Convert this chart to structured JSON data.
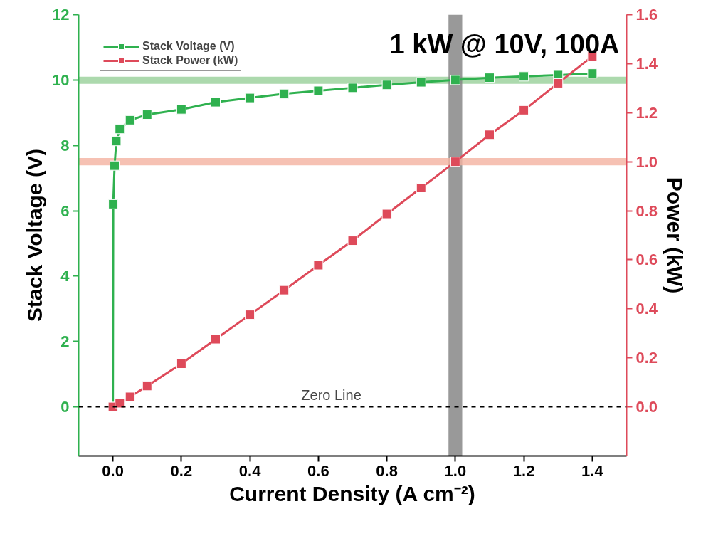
{
  "chart_data": {
    "type": "line",
    "xlabel": "Current Density (A cm⁻²)",
    "ylabel": "Stack Voltage (V)",
    "y2label": "Power (kW)",
    "annotations": [
      "1 kW @ 10V, 100A"
    ],
    "series": [
      {
        "name": "Stack Voltage (V)",
        "color": "#2fb14f",
        "x": [
          0,
          0.001,
          0.005,
          0.01,
          0.02,
          0.05,
          0.1,
          0.2,
          0.3,
          0.4,
          0.5,
          0.6,
          0.7,
          0.8,
          0.9,
          1.0,
          1.1,
          1.2,
          1.3,
          1.4
        ],
        "values": [
          0,
          6.2,
          7.38,
          8.13,
          8.5,
          8.77,
          8.94,
          9.1,
          9.32,
          9.45,
          9.58,
          9.67,
          9.76,
          9.85,
          9.93,
          10.0,
          10.07,
          10.11,
          10.15,
          10.2
        ]
      },
      {
        "name": "Stack Power (kW)",
        "color": "#de4a5a",
        "axis": "y2",
        "x": [
          0,
          0.02,
          0.05,
          0.1,
          0.2,
          0.3,
          0.4,
          0.5,
          0.6,
          0.7,
          0.8,
          0.9,
          1.0,
          1.1,
          1.2,
          1.3,
          1.4
        ],
        "values": [
          0,
          0.015,
          0.041,
          0.085,
          0.176,
          0.276,
          0.376,
          0.476,
          0.578,
          0.678,
          0.787,
          0.893,
          1.0,
          1.11,
          1.21,
          1.32,
          1.43
        ]
      }
    ],
    "xlim": [
      -0.1,
      1.5
    ],
    "xticks": [
      {
        "value": 0,
        "label": "0.0"
      },
      0.2,
      0.4,
      0.6,
      0.8,
      {
        "value": 1,
        "label": "1.0"
      },
      1.2,
      1.4
    ],
    "ylim": [
      -1.5,
      12
    ],
    "yticks": [
      0,
      2,
      4,
      6,
      8,
      10,
      12
    ],
    "y2lim": [
      -0.2,
      1.6
    ],
    "y2ticks": [
      {
        "value": 0,
        "label": "0.0"
      },
      0.2,
      0.4,
      0.6,
      0.8,
      {
        "value": 1,
        "label": "1.0"
      },
      1.2,
      1.4,
      1.6
    ],
    "ref_lines": [
      {
        "axis": "y",
        "value": 0,
        "label": "Zero Line",
        "color": "#000000",
        "line_style": "dashed"
      }
    ],
    "bands": [
      {
        "axis": "y",
        "from": 9.88,
        "to": 10.1,
        "color": "#97cf98"
      },
      {
        "axis": "x",
        "from": 0.98,
        "to": 1.02,
        "color": "#808080"
      },
      {
        "axis": "y2",
        "from": 0.985,
        "to": 1.015,
        "color": "#f4b2a0"
      }
    ],
    "marker": "square",
    "line_style": "solid",
    "grid": false,
    "legend": "top left"
  }
}
